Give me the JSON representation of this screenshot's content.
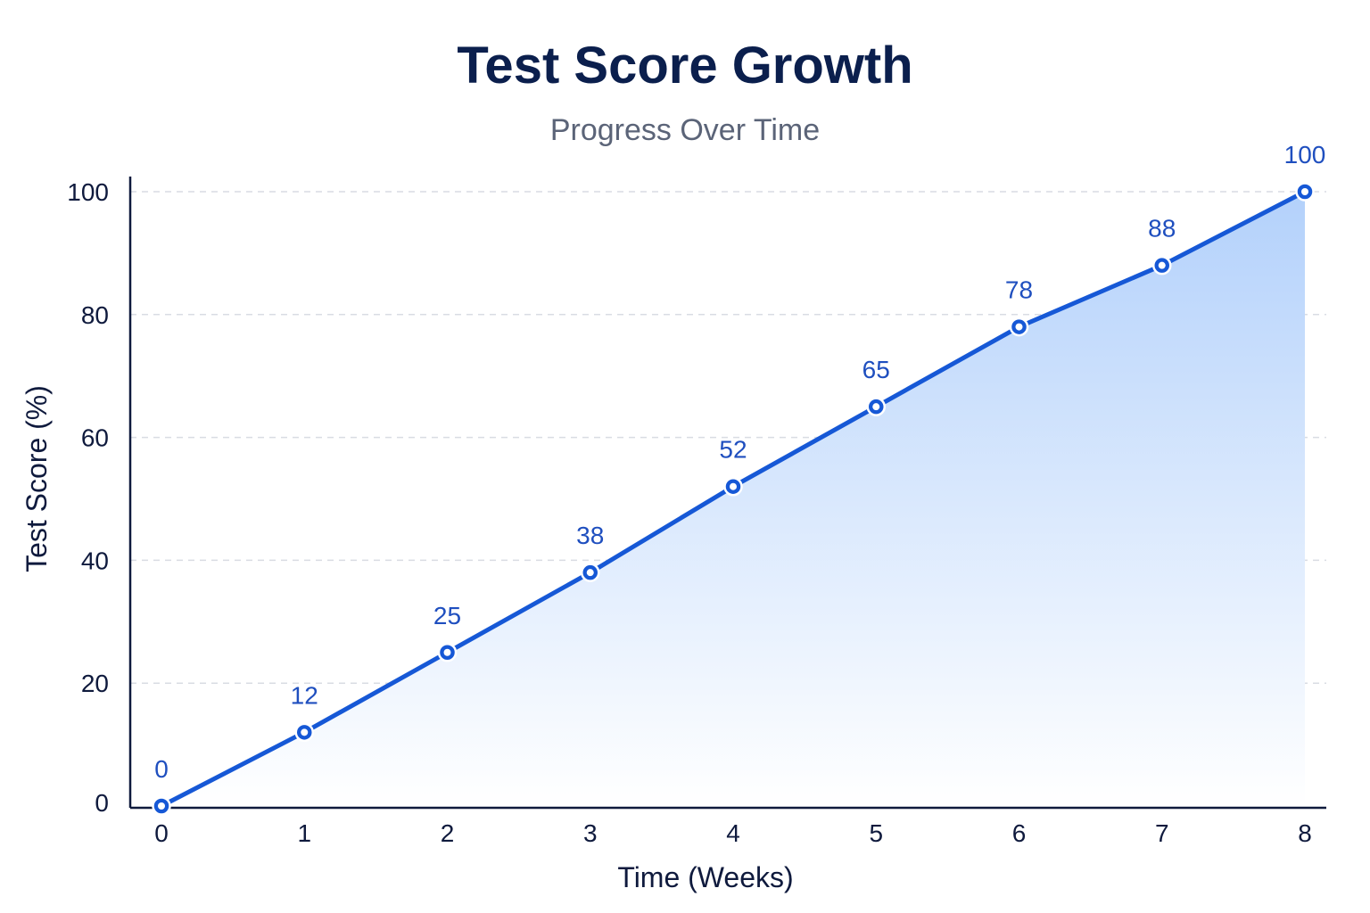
{
  "chart_data": {
    "type": "area",
    "title": "Test Score Growth",
    "subtitle": "Progress Over Time",
    "xlabel": "Time (Weeks)",
    "ylabel": "Test Score (%)",
    "x": [
      0,
      1,
      2,
      3,
      4,
      5,
      6,
      7,
      8
    ],
    "values": [
      0,
      12,
      25,
      38,
      52,
      65,
      78,
      88,
      100
    ],
    "data_labels": [
      "0",
      "12",
      "25",
      "38",
      "52",
      "65",
      "78",
      "88",
      "100"
    ],
    "xlim": [
      0,
      8
    ],
    "ylim": [
      0,
      100
    ],
    "x_ticks": [
      "0",
      "1",
      "2",
      "3",
      "4",
      "5",
      "6",
      "7",
      "8"
    ],
    "y_ticks": [
      "0",
      "20",
      "40",
      "60",
      "80",
      "100"
    ],
    "grid": "horizontal dashed",
    "legend": "none",
    "colors": {
      "line": "#1658d6",
      "area_top": "#b3d1fb",
      "area_bottom": "#ffffff",
      "marker_fill": "#ffffff",
      "grid": "#d9dce3",
      "axis": "#0f1a3d"
    }
  }
}
